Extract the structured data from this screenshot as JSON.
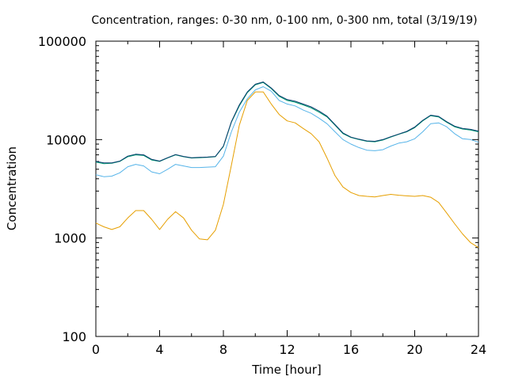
{
  "chart_data": {
    "type": "line",
    "title": "Concentration, ranges: 0-30 nm, 0-100 nm, 0-300 nm, total (3/19/19)",
    "xlabel": "Time [hour]",
    "ylabel": "Concentration",
    "xlim": [
      0,
      24
    ],
    "ylim": [
      100,
      100000
    ],
    "yscale": "log",
    "grid": false,
    "legend": "none",
    "x_ticks": [
      0,
      4,
      8,
      12,
      16,
      20,
      24
    ],
    "x_tick_labels": [
      "0",
      "4",
      "8",
      "12",
      "16",
      "20",
      "24"
    ],
    "y_ticks": [
      100,
      1000,
      10000,
      100000
    ],
    "y_tick_labels": [
      "100",
      "1000",
      "10000",
      "100000"
    ],
    "x": [
      0,
      0.5,
      1,
      1.5,
      2,
      2.5,
      3,
      3.5,
      4,
      4.5,
      5,
      5.5,
      6,
      6.5,
      7,
      7.5,
      8,
      8.5,
      9,
      9.5,
      10,
      10.5,
      11,
      11.5,
      12,
      12.5,
      13,
      13.5,
      14,
      14.5,
      15,
      15.5,
      16,
      16.5,
      17,
      17.5,
      18,
      18.5,
      19,
      19.5,
      20,
      20.5,
      21,
      21.5,
      22,
      22.5,
      23,
      23.5,
      24
    ],
    "series": [
      {
        "color": "#e69f00",
        "values": [
          1420,
          1300,
          1220,
          1300,
          1600,
          1900,
          1900,
          1550,
          1220,
          1550,
          1850,
          1600,
          1200,
          980,
          960,
          1200,
          2200,
          5500,
          14000,
          25000,
          30500,
          30500,
          23000,
          18000,
          15500,
          14800,
          13000,
          11500,
          9500,
          6500,
          4300,
          3300,
          2900,
          2700,
          2650,
          2620,
          2700,
          2780,
          2720,
          2680,
          2650,
          2700,
          2600,
          2300,
          1800,
          1400,
          1100,
          900,
          800
        ]
      },
      {
        "color": "#56b4e9",
        "values": [
          4400,
          4200,
          4250,
          4600,
          5300,
          5600,
          5400,
          4700,
          4500,
          5000,
          5600,
          5400,
          5200,
          5200,
          5250,
          5300,
          6800,
          12000,
          19000,
          26000,
          32000,
          34500,
          31000,
          25000,
          23000,
          22000,
          20000,
          18500,
          16500,
          14500,
          12000,
          10000,
          9000,
          8300,
          7800,
          7700,
          7900,
          8600,
          9200,
          9500,
          10200,
          12000,
          14500,
          14800,
          13500,
          11500,
          10200,
          10000,
          9400
        ]
      },
      {
        "color": "#009e73",
        "values": [
          5900,
          5700,
          5750,
          6000,
          6700,
          7000,
          6900,
          6200,
          6000,
          6500,
          7000,
          6700,
          6500,
          6550,
          6600,
          6700,
          8500,
          15000,
          22000,
          30000,
          36000,
          38000,
          33000,
          27500,
          25000,
          24000,
          22500,
          21000,
          19000,
          17000,
          14000,
          11500,
          10500,
          10000,
          9600,
          9500,
          9900,
          10600,
          11300,
          12000,
          13200,
          15500,
          17500,
          17000,
          15000,
          13500,
          12800,
          12500,
          12000
        ]
      },
      {
        "color": "#0a3c6e",
        "values": [
          6000,
          5800,
          5800,
          6050,
          6800,
          7100,
          7000,
          6300,
          6050,
          6550,
          7050,
          6750,
          6550,
          6600,
          6650,
          6750,
          8600,
          15200,
          22500,
          30500,
          36500,
          38500,
          33500,
          28000,
          25500,
          24500,
          23000,
          21500,
          19500,
          17300,
          14200,
          11700,
          10600,
          10100,
          9700,
          9600,
          10000,
          10700,
          11400,
          12100,
          13400,
          15700,
          17700,
          17200,
          15200,
          13700,
          13000,
          12700,
          12200
        ]
      }
    ]
  }
}
